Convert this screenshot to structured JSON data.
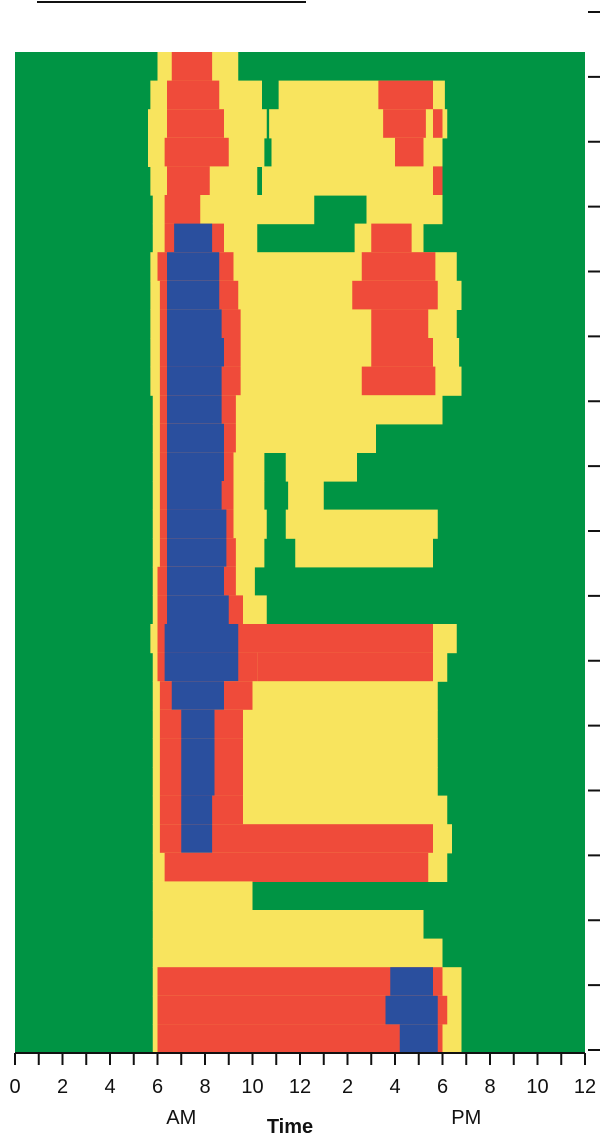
{
  "chart_data": {
    "type": "heatmap",
    "title": "",
    "xlabel": "Time",
    "ylabel": "",
    "x_tick_labels": [
      "0",
      "2",
      "4",
      "6",
      "8",
      "10",
      "12",
      "2",
      "4",
      "6",
      "8",
      "10",
      "12"
    ],
    "x_tick_hours": [
      0,
      2,
      4,
      6,
      8,
      10,
      12,
      14,
      16,
      18,
      20,
      22,
      24
    ],
    "x_period_labels": [
      {
        "text": "AM",
        "hour": 7
      },
      {
        "text": "PM",
        "hour": 19
      }
    ],
    "xlim": [
      0,
      24
    ],
    "grid": false,
    "colors": {
      "level0": "#009444",
      "level1": "#f8e45e",
      "level2": "#ef4b3a",
      "level3": "#2a4f9e"
    },
    "note_on_levels": "Four discrete intensity levels; rows represent successive days/records (top to bottom).",
    "row_count": 35,
    "rows": [
      {
        "y": 1,
        "segments": [
          [
            6.0,
            9.4,
            1
          ],
          [
            6.6,
            8.3,
            2
          ]
        ]
      },
      {
        "y": 2,
        "segments": [
          [
            5.7,
            10.4,
            1
          ],
          [
            6.4,
            8.6,
            2
          ],
          [
            11.1,
            18.1,
            1
          ],
          [
            15.3,
            17.6,
            2
          ]
        ]
      },
      {
        "y": 3,
        "segments": [
          [
            5.6,
            10.6,
            1
          ],
          [
            6.4,
            8.8,
            2
          ],
          [
            10.7,
            18.2,
            1
          ],
          [
            15.5,
            17.3,
            2
          ],
          [
            17.6,
            18.0,
            2
          ]
        ]
      },
      {
        "y": 4,
        "segments": [
          [
            5.6,
            10.5,
            1
          ],
          [
            6.3,
            9.0,
            2
          ],
          [
            10.8,
            18.0,
            1
          ],
          [
            16.0,
            17.2,
            2
          ]
        ]
      },
      {
        "y": 5,
        "segments": [
          [
            5.7,
            10.2,
            1
          ],
          [
            6.4,
            8.2,
            2
          ],
          [
            10.4,
            18.0,
            1
          ],
          [
            17.6,
            18.0,
            2
          ]
        ]
      },
      {
        "y": 6,
        "segments": [
          [
            5.8,
            12.6,
            1
          ],
          [
            6.3,
            7.8,
            2
          ],
          [
            14.8,
            18.0,
            1
          ]
        ]
      },
      {
        "y": 7,
        "segments": [
          [
            5.8,
            10.2,
            1
          ],
          [
            6.3,
            8.8,
            2
          ],
          [
            6.7,
            8.3,
            3
          ],
          [
            14.3,
            17.2,
            1
          ],
          [
            15.0,
            16.7,
            2
          ]
        ]
      },
      {
        "y": 8,
        "segments": [
          [
            5.7,
            18.6,
            1
          ],
          [
            6.0,
            9.2,
            2
          ],
          [
            6.4,
            8.6,
            3
          ],
          [
            14.6,
            17.7,
            2
          ]
        ]
      },
      {
        "y": 9,
        "segments": [
          [
            5.7,
            18.8,
            1
          ],
          [
            6.1,
            9.4,
            2
          ],
          [
            6.4,
            8.6,
            3
          ],
          [
            14.2,
            17.8,
            2
          ]
        ]
      },
      {
        "y": 10,
        "segments": [
          [
            5.7,
            18.6,
            1
          ],
          [
            6.1,
            9.5,
            2
          ],
          [
            6.4,
            8.7,
            3
          ],
          [
            15.0,
            17.4,
            2
          ]
        ]
      },
      {
        "y": 11,
        "segments": [
          [
            5.7,
            18.7,
            1
          ],
          [
            6.1,
            9.5,
            2
          ],
          [
            6.4,
            8.8,
            3
          ],
          [
            15.0,
            17.6,
            2
          ]
        ]
      },
      {
        "y": 12,
        "segments": [
          [
            5.7,
            18.8,
            1
          ],
          [
            6.1,
            9.5,
            2
          ],
          [
            6.4,
            8.7,
            3
          ],
          [
            14.6,
            17.7,
            2
          ]
        ]
      },
      {
        "y": 13,
        "segments": [
          [
            5.8,
            18.0,
            1
          ],
          [
            6.1,
            9.3,
            2
          ],
          [
            6.4,
            8.7,
            3
          ]
        ]
      },
      {
        "y": 14,
        "segments": [
          [
            5.8,
            15.2,
            1
          ],
          [
            6.1,
            9.3,
            2
          ],
          [
            6.4,
            8.8,
            3
          ]
        ]
      },
      {
        "y": 15,
        "segments": [
          [
            5.8,
            10.5,
            1
          ],
          [
            6.1,
            9.2,
            2
          ],
          [
            6.4,
            8.8,
            3
          ],
          [
            11.4,
            14.4,
            1
          ]
        ]
      },
      {
        "y": 16,
        "segments": [
          [
            5.8,
            10.5,
            1
          ],
          [
            6.1,
            9.2,
            2
          ],
          [
            6.4,
            8.7,
            3
          ],
          [
            11.5,
            13.0,
            1
          ]
        ]
      },
      {
        "y": 17,
        "segments": [
          [
            5.8,
            10.6,
            1
          ],
          [
            6.1,
            9.2,
            2
          ],
          [
            6.4,
            8.9,
            3
          ],
          [
            11.4,
            17.8,
            1
          ]
        ]
      },
      {
        "y": 18,
        "segments": [
          [
            5.8,
            10.5,
            1
          ],
          [
            6.1,
            9.3,
            2
          ],
          [
            6.4,
            8.9,
            3
          ],
          [
            11.8,
            17.6,
            1
          ]
        ]
      },
      {
        "y": 19,
        "segments": [
          [
            5.8,
            10.1,
            1
          ],
          [
            6.0,
            9.3,
            2
          ],
          [
            6.4,
            8.8,
            3
          ]
        ]
      },
      {
        "y": 20,
        "segments": [
          [
            5.8,
            10.6,
            1
          ],
          [
            6.0,
            9.6,
            2
          ],
          [
            6.4,
            9.0,
            3
          ]
        ]
      },
      {
        "y": 21,
        "segments": [
          [
            5.7,
            18.6,
            1
          ],
          [
            6.0,
            10.0,
            2
          ],
          [
            6.3,
            9.4,
            3
          ],
          [
            10.0,
            17.6,
            2
          ]
        ]
      },
      {
        "y": 22,
        "segments": [
          [
            5.8,
            18.2,
            1
          ],
          [
            6.0,
            10.2,
            2
          ],
          [
            6.3,
            9.4,
            3
          ],
          [
            10.2,
            17.6,
            2
          ]
        ]
      },
      {
        "y": 23,
        "segments": [
          [
            5.8,
            17.8,
            1
          ],
          [
            6.1,
            10.0,
            2
          ],
          [
            6.6,
            8.8,
            3
          ]
        ]
      },
      {
        "y": 24,
        "segments": [
          [
            5.8,
            17.8,
            1
          ],
          [
            6.1,
            9.6,
            2
          ],
          [
            7.0,
            8.4,
            3
          ]
        ]
      },
      {
        "y": 25,
        "segments": [
          [
            5.8,
            17.8,
            1
          ],
          [
            6.1,
            9.6,
            2
          ],
          [
            7.0,
            8.4,
            3
          ]
        ]
      },
      {
        "y": 26,
        "segments": [
          [
            5.8,
            17.8,
            1
          ],
          [
            6.1,
            9.6,
            2
          ],
          [
            7.0,
            8.4,
            3
          ]
        ]
      },
      {
        "y": 27,
        "segments": [
          [
            5.8,
            18.2,
            1
          ],
          [
            6.1,
            9.6,
            2
          ],
          [
            7.0,
            8.3,
            3
          ]
        ]
      },
      {
        "y": 28,
        "segments": [
          [
            5.8,
            18.4,
            1
          ],
          [
            6.1,
            17.6,
            2
          ],
          [
            7.0,
            8.3,
            3
          ]
        ]
      },
      {
        "y": 29,
        "segments": [
          [
            5.8,
            18.2,
            1
          ],
          [
            6.3,
            17.4,
            2
          ]
        ]
      },
      {
        "y": 30,
        "segments": [
          [
            5.8,
            10.0,
            1
          ]
        ]
      },
      {
        "y": 31,
        "segments": [
          [
            5.8,
            10.0,
            1
          ],
          [
            10.0,
            17.2,
            1
          ]
        ]
      },
      {
        "y": 32,
        "segments": [
          [
            5.8,
            18.0,
            1
          ]
        ]
      },
      {
        "y": 33,
        "segments": [
          [
            5.8,
            18.8,
            1
          ],
          [
            6.0,
            18.0,
            2
          ],
          [
            15.8,
            17.6,
            3
          ]
        ]
      },
      {
        "y": 34,
        "segments": [
          [
            5.8,
            18.8,
            1
          ],
          [
            6.0,
            18.2,
            2
          ],
          [
            15.6,
            17.8,
            3
          ]
        ]
      },
      {
        "y": 35,
        "segments": [
          [
            5.8,
            18.8,
            1
          ],
          [
            6.0,
            18.0,
            2
          ],
          [
            16.2,
            17.8,
            3
          ]
        ]
      }
    ]
  }
}
